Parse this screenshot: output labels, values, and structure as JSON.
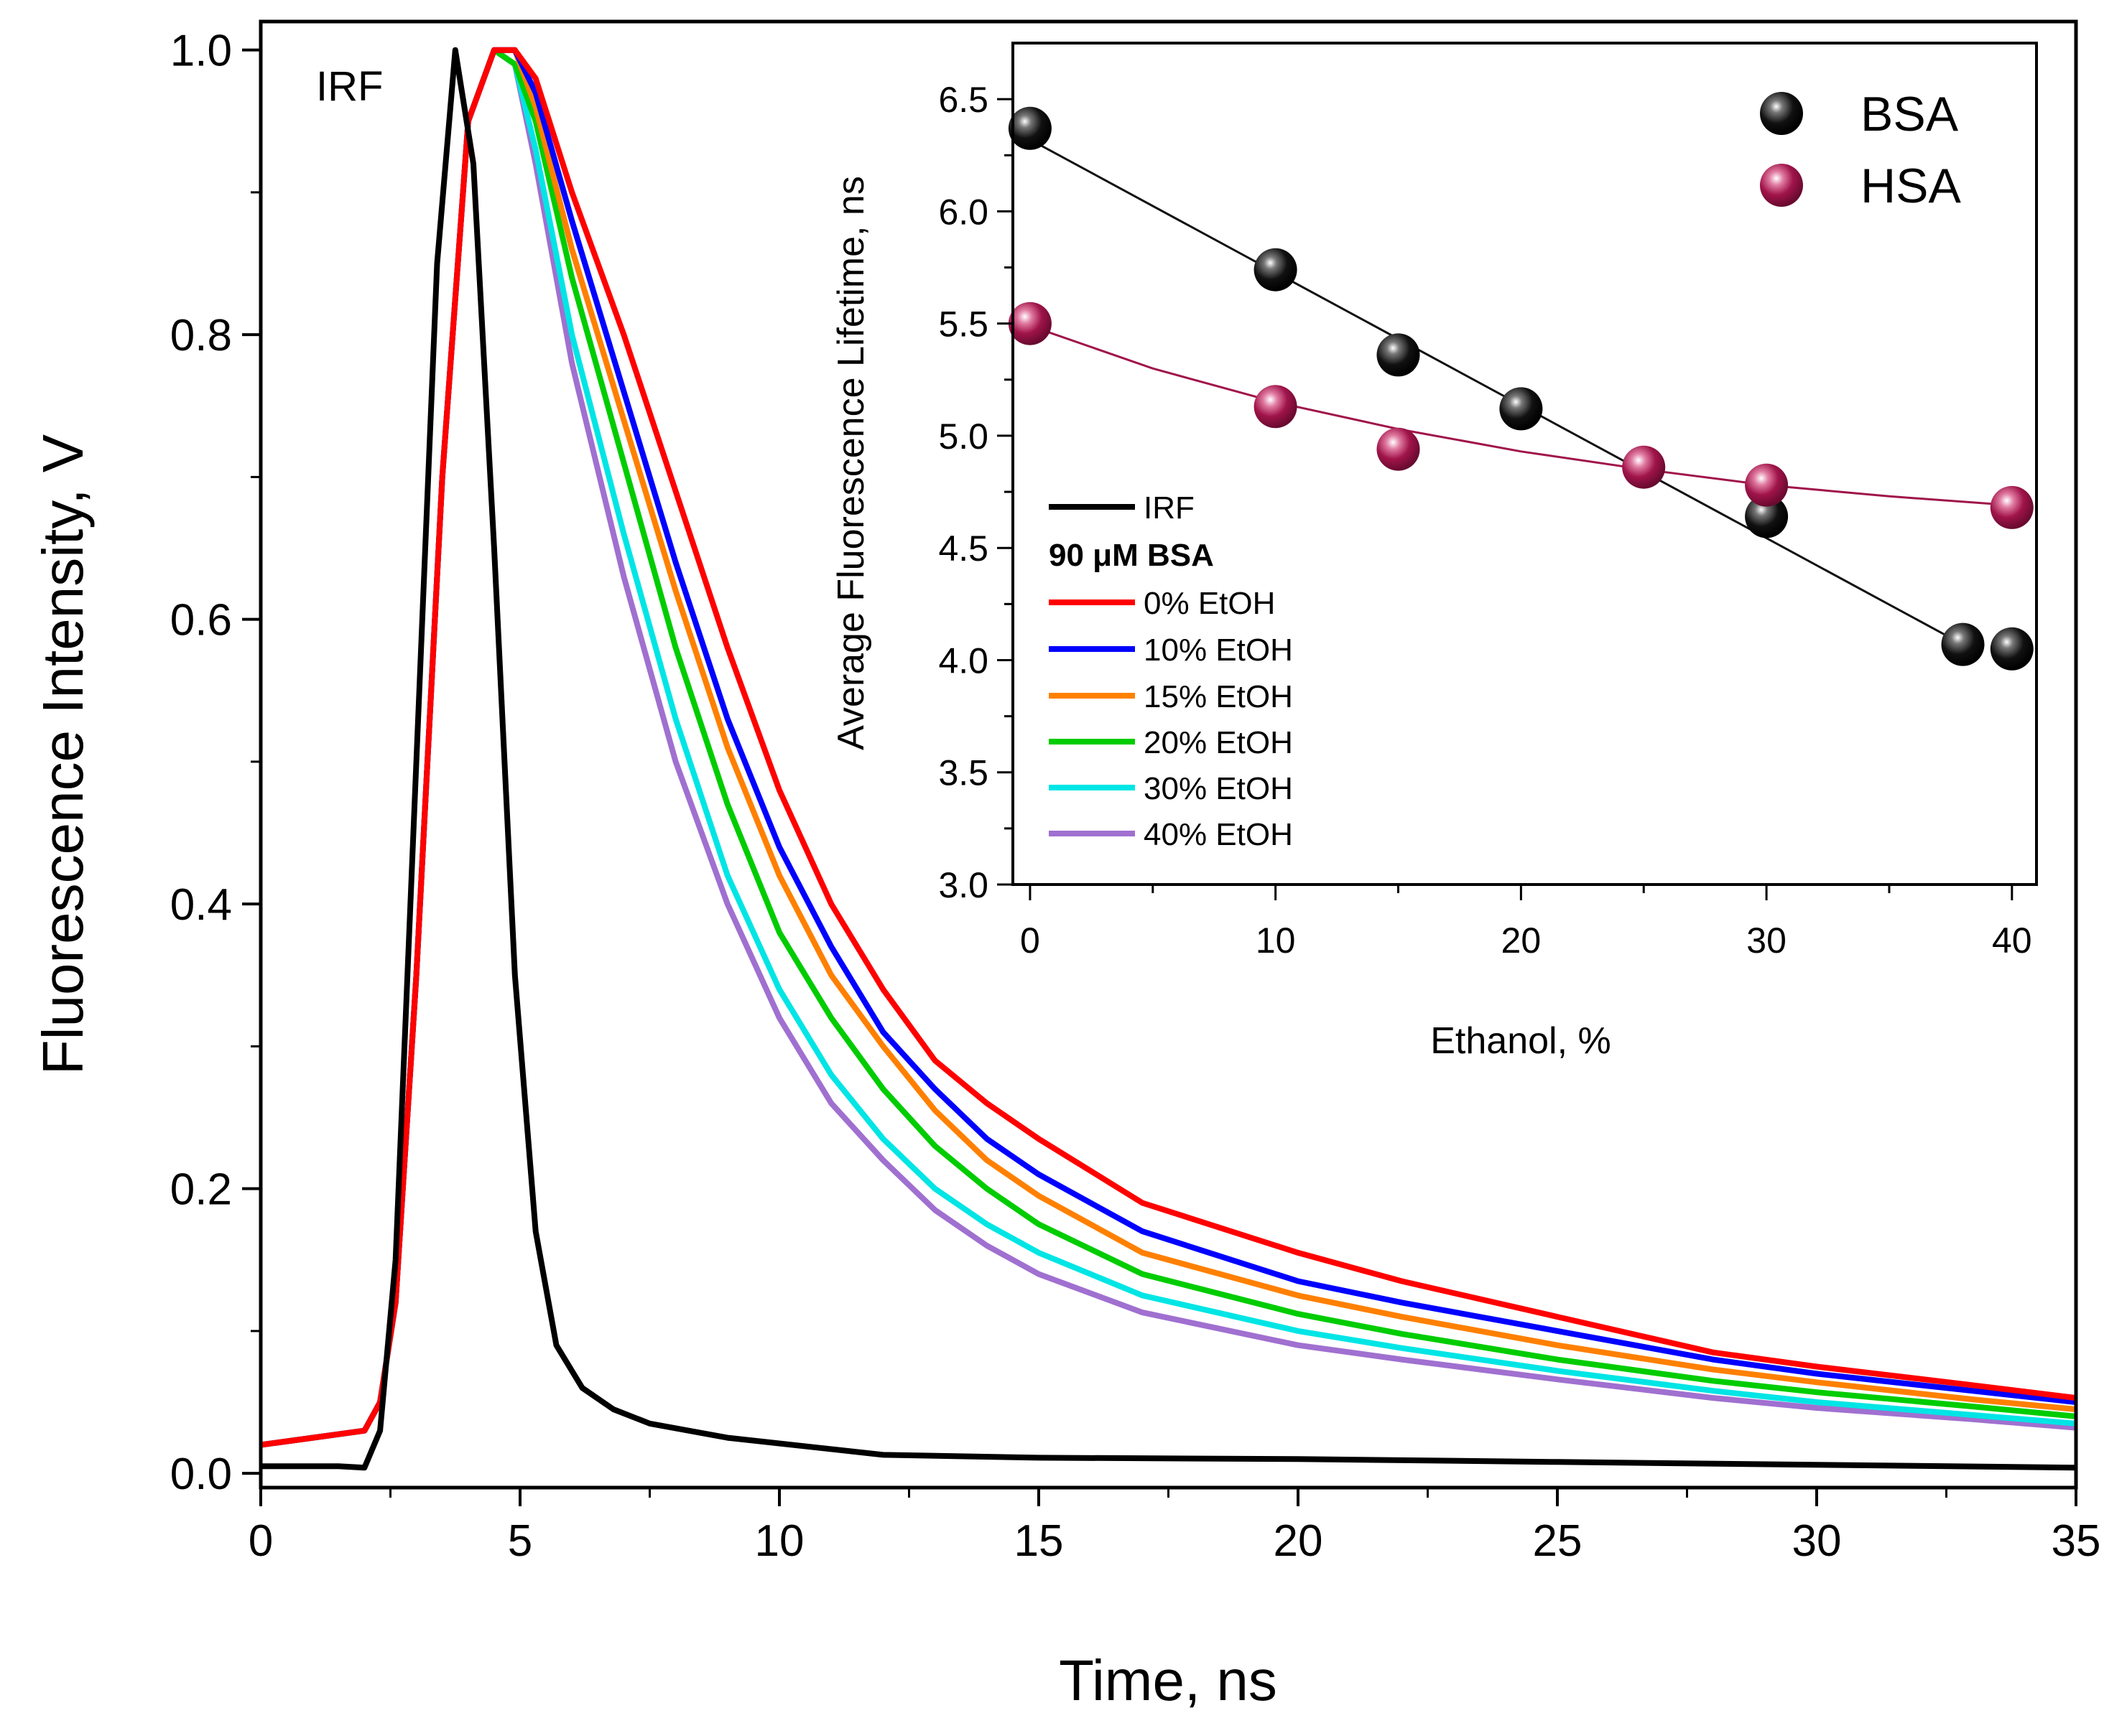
{
  "colors": {
    "IRF": "#000000",
    "0% EtOH": "#ff0000",
    "10% EtOH": "#0000ff",
    "15% EtOH": "#ff8000",
    "20% EtOH": "#00cc00",
    "30% EtOH": "#00e5e5",
    "40% EtOH": "#a070d0",
    "BSA": "#111111",
    "HSA": "#a0144a"
  },
  "chart_data": [
    {
      "type": "line",
      "title": "",
      "xlabel": "Time, ns",
      "ylabel": "Fluorescence Intensity, V",
      "xlim": [
        0,
        35
      ],
      "ylim": [
        -0.01,
        1.02
      ],
      "xticks": [
        0,
        5,
        10,
        15,
        20,
        25,
        30,
        35
      ],
      "xtick_labels": [
        "0",
        "5",
        "10",
        "15",
        "20",
        "25",
        "30",
        "35"
      ],
      "yticks": [
        0.0,
        0.2,
        0.4,
        0.6,
        0.8,
        1.0
      ],
      "ytick_labels": [
        "0.0",
        "0.2",
        "0.4",
        "0.6",
        "0.8",
        "1.0"
      ],
      "annotation": "IRF",
      "series": [
        {
          "name": "IRF",
          "x": [
            0,
            1.5,
            2,
            2.3,
            2.6,
            3.0,
            3.4,
            3.75,
            4.1,
            4.5,
            4.9,
            5.3,
            5.7,
            6.2,
            6.8,
            7.5,
            9,
            12,
            15,
            20,
            25,
            30,
            35
          ],
          "y": [
            0.005,
            0.005,
            0.004,
            0.03,
            0.15,
            0.5,
            0.85,
            1.0,
            0.92,
            0.65,
            0.35,
            0.17,
            0.09,
            0.06,
            0.045,
            0.035,
            0.025,
            0.013,
            0.011,
            0.01,
            0.008,
            0.006,
            0.004
          ]
        },
        {
          "name": "0% EtOH",
          "x": [
            0,
            1,
            2,
            2.3,
            2.6,
            3.0,
            3.5,
            4.0,
            4.5,
            4.9,
            5.3,
            6,
            7,
            8,
            9,
            10,
            11,
            12,
            13,
            14,
            15,
            17,
            20,
            22,
            25,
            28,
            30,
            33,
            35
          ],
          "y": [
            0.02,
            0.025,
            0.03,
            0.05,
            0.12,
            0.35,
            0.7,
            0.95,
            1.0,
            1.0,
            0.98,
            0.9,
            0.8,
            0.69,
            0.58,
            0.48,
            0.4,
            0.34,
            0.29,
            0.26,
            0.235,
            0.19,
            0.155,
            0.135,
            0.11,
            0.085,
            0.075,
            0.062,
            0.053
          ]
        },
        {
          "name": "10% EtOH",
          "x": [
            0,
            1,
            2,
            2.3,
            2.6,
            3.0,
            3.5,
            4.0,
            4.5,
            4.9,
            5.3,
            6,
            7,
            8,
            9,
            10,
            11,
            12,
            13,
            14,
            15,
            17,
            20,
            22,
            25,
            28,
            30,
            33,
            35
          ],
          "y": [
            0.02,
            0.025,
            0.03,
            0.05,
            0.12,
            0.35,
            0.7,
            0.95,
            1.0,
            1.0,
            0.97,
            0.88,
            0.76,
            0.64,
            0.53,
            0.44,
            0.37,
            0.31,
            0.27,
            0.235,
            0.21,
            0.17,
            0.135,
            0.12,
            0.1,
            0.08,
            0.07,
            0.058,
            0.05
          ]
        },
        {
          "name": "15% EtOH",
          "x": [
            0,
            1,
            2,
            2.3,
            2.6,
            3.0,
            3.5,
            4.0,
            4.5,
            4.9,
            5.3,
            6,
            7,
            8,
            9,
            10,
            11,
            12,
            13,
            14,
            15,
            17,
            20,
            22,
            25,
            28,
            30,
            33,
            35
          ],
          "y": [
            0.02,
            0.025,
            0.03,
            0.05,
            0.12,
            0.35,
            0.7,
            0.95,
            1.0,
            1.0,
            0.96,
            0.86,
            0.74,
            0.62,
            0.51,
            0.42,
            0.35,
            0.3,
            0.255,
            0.22,
            0.195,
            0.155,
            0.125,
            0.11,
            0.09,
            0.073,
            0.064,
            0.052,
            0.045
          ]
        },
        {
          "name": "20% EtOH",
          "x": [
            0,
            1,
            2,
            2.3,
            2.6,
            3.0,
            3.5,
            4.0,
            4.5,
            4.9,
            5.3,
            6,
            7,
            8,
            9,
            10,
            11,
            12,
            13,
            14,
            15,
            17,
            20,
            22,
            25,
            28,
            30,
            33,
            35
          ],
          "y": [
            0.02,
            0.025,
            0.03,
            0.05,
            0.12,
            0.35,
            0.7,
            0.95,
            1.0,
            0.99,
            0.95,
            0.84,
            0.71,
            0.58,
            0.47,
            0.38,
            0.32,
            0.27,
            0.23,
            0.2,
            0.175,
            0.14,
            0.112,
            0.098,
            0.08,
            0.065,
            0.057,
            0.047,
            0.04
          ]
        },
        {
          "name": "30% EtOH",
          "x": [
            0,
            1,
            2,
            2.3,
            2.6,
            3.0,
            3.5,
            4.0,
            4.5,
            4.9,
            5.3,
            6,
            7,
            8,
            9,
            10,
            11,
            12,
            13,
            14,
            15,
            17,
            20,
            22,
            25,
            28,
            30,
            33,
            35
          ],
          "y": [
            0.02,
            0.025,
            0.03,
            0.05,
            0.12,
            0.35,
            0.7,
            0.95,
            1.0,
            0.99,
            0.93,
            0.8,
            0.66,
            0.53,
            0.42,
            0.34,
            0.28,
            0.235,
            0.2,
            0.175,
            0.155,
            0.125,
            0.1,
            0.088,
            0.072,
            0.058,
            0.05,
            0.041,
            0.035
          ]
        },
        {
          "name": "40% EtOH",
          "x": [
            0,
            1,
            2,
            2.3,
            2.6,
            3.0,
            3.5,
            4.0,
            4.5,
            4.9,
            5.3,
            6,
            7,
            8,
            9,
            10,
            11,
            12,
            13,
            14,
            15,
            17,
            20,
            22,
            25,
            28,
            30,
            33,
            35
          ],
          "y": [
            0.02,
            0.025,
            0.03,
            0.05,
            0.12,
            0.35,
            0.7,
            0.95,
            1.0,
            0.99,
            0.92,
            0.78,
            0.63,
            0.5,
            0.4,
            0.32,
            0.26,
            0.22,
            0.185,
            0.16,
            0.14,
            0.113,
            0.09,
            0.08,
            0.066,
            0.053,
            0.046,
            0.038,
            0.032
          ]
        }
      ],
      "legend": {
        "title": "90 μM BSA",
        "entries": [
          "IRF",
          "0% EtOH",
          "10% EtOH",
          "15% EtOH",
          "20% EtOH",
          "30% EtOH",
          "40% EtOH"
        ]
      }
    },
    {
      "type": "scatter",
      "title": "",
      "xlabel": "Ethanol, %",
      "ylabel": "Average Fluorescence Lifetime, ns",
      "xlim": [
        -0.7,
        41
      ],
      "ylim": [
        3.0,
        6.75
      ],
      "xticks": [
        0,
        10,
        20,
        30,
        40
      ],
      "xtick_labels": [
        "0",
        "10",
        "20",
        "30",
        "40"
      ],
      "yticks": [
        3.0,
        3.5,
        4.0,
        4.5,
        5.0,
        5.5,
        6.0,
        6.5
      ],
      "ytick_labels": [
        "3.0",
        "3.5",
        "4.0",
        "4.5",
        "5.0",
        "5.5",
        "6.0",
        "6.5"
      ],
      "series": [
        {
          "name": "BSA",
          "x": [
            0,
            10,
            15,
            20,
            30,
            38,
            40
          ],
          "y": [
            6.37,
            5.74,
            5.36,
            5.12,
            4.64,
            4.07,
            4.05
          ],
          "fit": {
            "kind": "linear",
            "x": [
              0,
              38
            ],
            "y": [
              6.32,
              4.07
            ]
          }
        },
        {
          "name": "HSA",
          "x": [
            0,
            10,
            15,
            25,
            30,
            40
          ],
          "y": [
            5.5,
            5.13,
            4.94,
            4.86,
            4.78,
            4.68
          ],
          "fit": {
            "kind": "exp_decay",
            "x": [
              0,
              5,
              10,
              15,
              20,
              25,
              30,
              35,
              40
            ],
            "y": [
              5.49,
              5.3,
              5.15,
              5.03,
              4.93,
              4.85,
              4.78,
              4.73,
              4.69
            ]
          }
        }
      ],
      "legend": {
        "entries": [
          "BSA",
          "HSA"
        ],
        "position": "top-right"
      }
    }
  ]
}
